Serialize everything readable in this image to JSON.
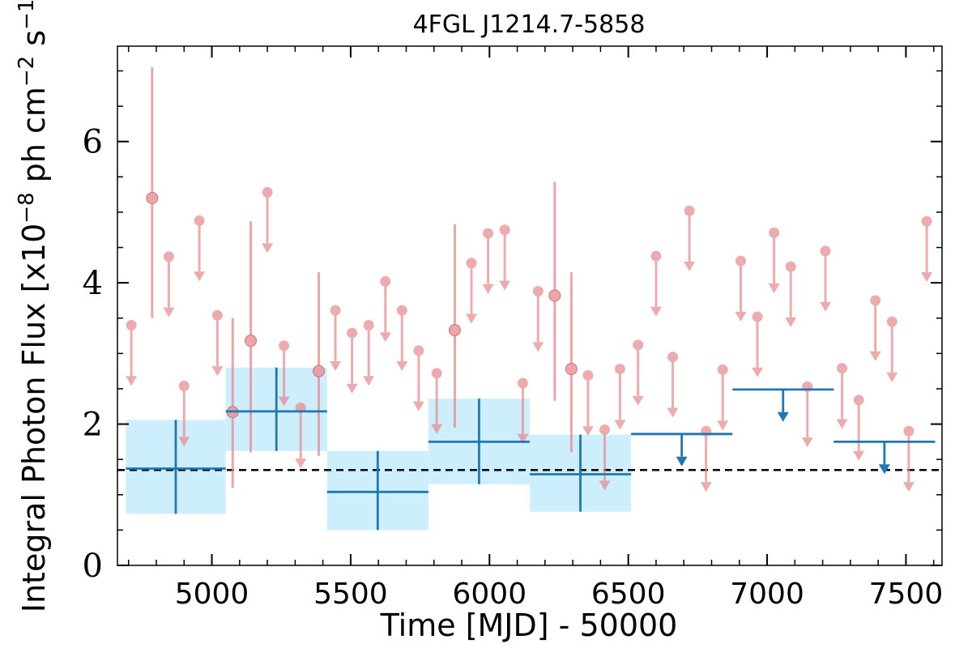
{
  "chart_data": {
    "type": "scatter",
    "title": "4FGL J1214.7-5858",
    "xlabel": "Time [MJD] - 50000",
    "ylabel": "Integral Photon Flux [x10^-8 ph cm^-2 s^-1]",
    "ylabel_parts": {
      "main": "Integral Photon Flux [x10",
      "exp1": "−8",
      "mid": " ph cm",
      "exp2": "−2",
      "mid2": " s",
      "exp3": "−1",
      "end": "]"
    },
    "xlim": [
      4660,
      7630
    ],
    "ylim": [
      0,
      7.35
    ],
    "x_ticks": [
      5000,
      5500,
      6000,
      6500,
      7000,
      7500
    ],
    "y_ticks": [
      0,
      2,
      4,
      6
    ],
    "x_tick_labels": [
      "5000",
      "5500",
      "6000",
      "6500",
      "7000",
      "7500"
    ],
    "y_tick_labels": [
      "0",
      "2",
      "4",
      "6"
    ],
    "baseline_flux": 1.35,
    "colors": {
      "short_bins": "#e8888c",
      "long_bins": "#1f77b4",
      "long_bins_band": "#cdeefc",
      "baseline": "#000000"
    },
    "short_bin_detections": [
      {
        "x": 4785,
        "y": 5.2,
        "lo": 3.5,
        "hi": 7.05
      },
      {
        "x": 5075,
        "y": 2.17,
        "lo": 1.1,
        "hi": 3.5
      },
      {
        "x": 5140,
        "y": 3.18,
        "lo": 1.6,
        "hi": 4.87
      },
      {
        "x": 5385,
        "y": 2.75,
        "lo": 1.55,
        "hi": 4.15
      },
      {
        "x": 5875,
        "y": 3.33,
        "lo": 1.95,
        "hi": 4.83
      },
      {
        "x": 6235,
        "y": 3.82,
        "lo": 2.33,
        "hi": 5.43
      },
      {
        "x": 6295,
        "y": 2.78,
        "lo": 1.6,
        "hi": 4.15
      }
    ],
    "short_bin_upper_limits": [
      {
        "x": 4710,
        "y": 3.4
      },
      {
        "x": 4845,
        "y": 4.37
      },
      {
        "x": 4900,
        "y": 2.54
      },
      {
        "x": 4955,
        "y": 4.88
      },
      {
        "x": 5020,
        "y": 3.54
      },
      {
        "x": 5200,
        "y": 5.28
      },
      {
        "x": 5260,
        "y": 3.11
      },
      {
        "x": 5320,
        "y": 2.23
      },
      {
        "x": 5445,
        "y": 3.61
      },
      {
        "x": 5505,
        "y": 3.29
      },
      {
        "x": 5565,
        "y": 3.4
      },
      {
        "x": 5625,
        "y": 4.02
      },
      {
        "x": 5685,
        "y": 3.61
      },
      {
        "x": 5745,
        "y": 3.04
      },
      {
        "x": 5810,
        "y": 2.72
      },
      {
        "x": 5935,
        "y": 4.28
      },
      {
        "x": 5995,
        "y": 4.7
      },
      {
        "x": 6055,
        "y": 4.75
      },
      {
        "x": 6120,
        "y": 2.58
      },
      {
        "x": 6175,
        "y": 3.88
      },
      {
        "x": 6355,
        "y": 2.69
      },
      {
        "x": 6415,
        "y": 1.92
      },
      {
        "x": 6470,
        "y": 2.78
      },
      {
        "x": 6535,
        "y": 3.12
      },
      {
        "x": 6600,
        "y": 4.38
      },
      {
        "x": 6660,
        "y": 2.95
      },
      {
        "x": 6720,
        "y": 5.02
      },
      {
        "x": 6780,
        "y": 1.9
      },
      {
        "x": 6840,
        "y": 2.77
      },
      {
        "x": 6905,
        "y": 4.31
      },
      {
        "x": 6965,
        "y": 3.52
      },
      {
        "x": 7025,
        "y": 4.71
      },
      {
        "x": 7085,
        "y": 4.23
      },
      {
        "x": 7145,
        "y": 2.53
      },
      {
        "x": 7210,
        "y": 4.45
      },
      {
        "x": 7270,
        "y": 2.79
      },
      {
        "x": 7330,
        "y": 2.34
      },
      {
        "x": 7390,
        "y": 3.75
      },
      {
        "x": 7450,
        "y": 3.45
      },
      {
        "x": 7510,
        "y": 1.9
      },
      {
        "x": 7575,
        "y": 4.87
      }
    ],
    "long_bin_detections": [
      {
        "x0": 4690,
        "x1": 5050,
        "y": 1.37,
        "lo": 0.73,
        "hi": 2.06,
        "band_lo": 0.73,
        "band_hi": 2.06
      },
      {
        "x0": 5050,
        "x1": 5415,
        "y": 2.18,
        "lo": 1.62,
        "hi": 2.8,
        "band_lo": 1.62,
        "band_hi": 2.8
      },
      {
        "x0": 5415,
        "x1": 5780,
        "y": 1.04,
        "lo": 0.5,
        "hi": 1.62,
        "band_lo": 0.5,
        "band_hi": 1.62
      },
      {
        "x0": 5780,
        "x1": 6145,
        "y": 1.75,
        "lo": 1.15,
        "hi": 2.36,
        "band_lo": 1.15,
        "band_hi": 2.36
      },
      {
        "x0": 6145,
        "x1": 6510,
        "y": 1.29,
        "lo": 0.76,
        "hi": 1.85,
        "band_lo": 0.76,
        "band_hi": 1.85
      }
    ],
    "long_bin_upper_limits": [
      {
        "x0": 6510,
        "x1": 6875,
        "y": 1.86
      },
      {
        "x0": 6875,
        "x1": 7240,
        "y": 2.49
      },
      {
        "x0": 7240,
        "x1": 7605,
        "y": 1.75
      }
    ],
    "grid": false,
    "legend": "none"
  }
}
